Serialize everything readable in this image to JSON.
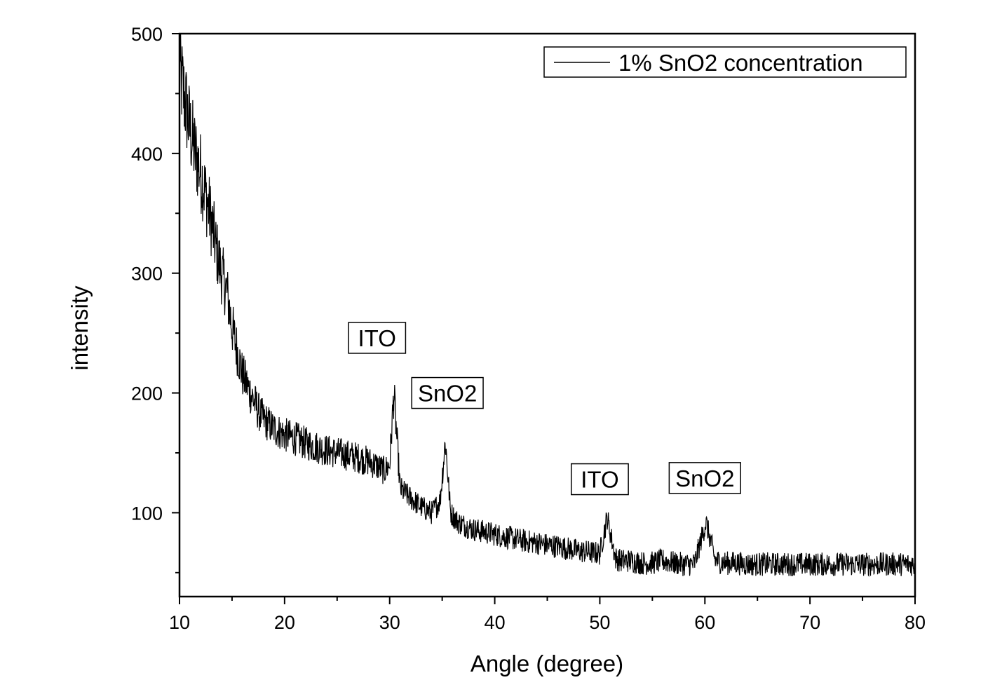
{
  "chart_data": {
    "type": "line",
    "xlabel": "Angle (degree)",
    "ylabel": "intensity",
    "xlim": [
      10,
      80
    ],
    "ylim": [
      30,
      500
    ],
    "x_ticks": [
      10,
      20,
      30,
      40,
      50,
      60,
      70,
      80
    ],
    "y_ticks": [
      100,
      200,
      300,
      400,
      500
    ],
    "grid": false,
    "legend_position": "top-right",
    "series": [
      {
        "name": "1% SnO2 concentration",
        "color": "#000000",
        "x": [
          10,
          10.5,
          11,
          11.5,
          12,
          12.5,
          13,
          13.5,
          14,
          14.5,
          15,
          15.5,
          16,
          16.5,
          17,
          17.5,
          18,
          19,
          20,
          21,
          22,
          23,
          24,
          25,
          26,
          27,
          28,
          29,
          29.5,
          30,
          30.4,
          31,
          32,
          33,
          34,
          34.8,
          35.3,
          35.8,
          36.5,
          37,
          38,
          39,
          40,
          41,
          42,
          43,
          44,
          45,
          46,
          47,
          48,
          49,
          50,
          50.7,
          51.5,
          52,
          53,
          54,
          55,
          56,
          57,
          58,
          59,
          60.1,
          61,
          62,
          63,
          64,
          65,
          66,
          67,
          68,
          69,
          70,
          71,
          72,
          73,
          74,
          75,
          76,
          77,
          78,
          79,
          80
        ],
        "y": [
          470,
          445,
          420,
          400,
          385,
          365,
          345,
          320,
          300,
          285,
          255,
          235,
          215,
          205,
          195,
          185,
          178,
          170,
          165,
          162,
          158,
          155,
          152,
          150,
          148,
          146,
          143,
          138,
          135,
          140,
          200,
          120,
          112,
          105,
          100,
          110,
          160,
          100,
          92,
          90,
          86,
          84,
          82,
          80,
          78,
          76,
          75,
          73,
          72,
          70,
          68,
          67,
          66,
          96,
          62,
          60,
          60,
          58,
          58,
          60,
          58,
          57,
          57,
          92,
          60,
          58,
          58,
          57,
          57,
          57,
          57,
          57,
          57,
          57,
          57,
          57,
          57,
          57,
          57,
          57,
          57,
          57,
          57,
          57
        ]
      }
    ],
    "annotations": [
      {
        "text": "ITO",
        "x": 28.8,
        "y": 246
      },
      {
        "text": "SnO2",
        "x": 35.5,
        "y": 200
      },
      {
        "text": "ITO",
        "x": 50.0,
        "y": 128
      },
      {
        "text": "SnO2",
        "x": 60.0,
        "y": 129
      }
    ]
  }
}
